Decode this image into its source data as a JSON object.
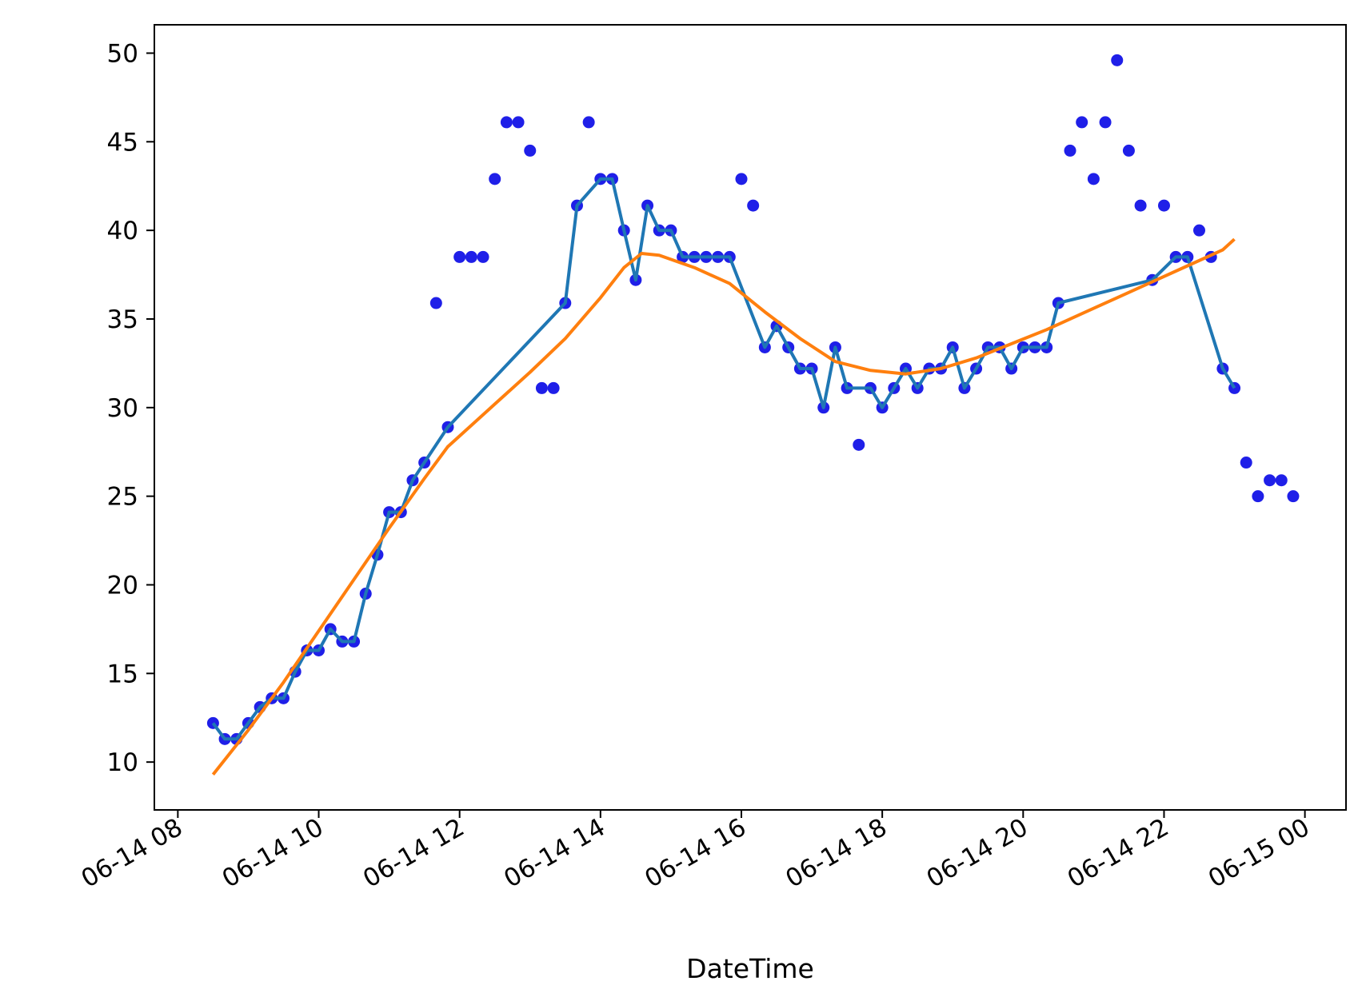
{
  "chart_data": {
    "type": "line",
    "xlabel": "DateTime",
    "ylabel": "",
    "title": "",
    "x_axis": {
      "type": "datetime",
      "range": [
        "2024-06-14 07:40",
        "2024-06-15 00:35"
      ],
      "ticks": [
        {
          "t": "2024-06-14 08:00",
          "label": "06-14 08"
        },
        {
          "t": "2024-06-14 10:00",
          "label": "06-14 10"
        },
        {
          "t": "2024-06-14 12:00",
          "label": "06-14 12"
        },
        {
          "t": "2024-06-14 14:00",
          "label": "06-14 14"
        },
        {
          "t": "2024-06-14 16:00",
          "label": "06-14 16"
        },
        {
          "t": "2024-06-14 18:00",
          "label": "06-14 18"
        },
        {
          "t": "2024-06-14 20:00",
          "label": "06-14 20"
        },
        {
          "t": "2024-06-14 22:00",
          "label": "06-14 22"
        },
        {
          "t": "2024-06-15 00:00",
          "label": "06-15 00"
        }
      ]
    },
    "y_axis": {
      "range": [
        7.3,
        51.6
      ],
      "ticks": [
        10,
        15,
        20,
        25,
        30,
        35,
        40,
        45,
        50
      ]
    },
    "grid": false,
    "colors": {
      "scatter": "#1f1fe8",
      "line": "#1f77b4",
      "trend": "#ff7f0e"
    },
    "scatter": [
      [
        "2024-06-14 08:30",
        12.2
      ],
      [
        "2024-06-14 08:40",
        11.3
      ],
      [
        "2024-06-14 08:50",
        11.3
      ],
      [
        "2024-06-14 09:00",
        12.2
      ],
      [
        "2024-06-14 09:10",
        13.1
      ],
      [
        "2024-06-14 09:20",
        13.6
      ],
      [
        "2024-06-14 09:30",
        13.6
      ],
      [
        "2024-06-14 09:40",
        15.1
      ],
      [
        "2024-06-14 09:50",
        16.3
      ],
      [
        "2024-06-14 10:00",
        16.3
      ],
      [
        "2024-06-14 10:10",
        17.5
      ],
      [
        "2024-06-14 10:20",
        16.8
      ],
      [
        "2024-06-14 10:30",
        16.8
      ],
      [
        "2024-06-14 10:40",
        19.5
      ],
      [
        "2024-06-14 10:50",
        21.7
      ],
      [
        "2024-06-14 11:00",
        24.1
      ],
      [
        "2024-06-14 11:10",
        24.1
      ],
      [
        "2024-06-14 11:20",
        25.9
      ],
      [
        "2024-06-14 11:30",
        26.9
      ],
      [
        "2024-06-14 11:40",
        35.9
      ],
      [
        "2024-06-14 11:50",
        28.9
      ],
      [
        "2024-06-14 12:00",
        38.5
      ],
      [
        "2024-06-14 12:10",
        38.5
      ],
      [
        "2024-06-14 12:20",
        38.5
      ],
      [
        "2024-06-14 12:30",
        42.9
      ],
      [
        "2024-06-14 12:40",
        46.1
      ],
      [
        "2024-06-14 12:50",
        46.1
      ],
      [
        "2024-06-14 13:00",
        44.5
      ],
      [
        "2024-06-14 13:10",
        31.1
      ],
      [
        "2024-06-14 13:20",
        31.1
      ],
      [
        "2024-06-14 13:30",
        35.9
      ],
      [
        "2024-06-14 13:40",
        41.4
      ],
      [
        "2024-06-14 13:50",
        46.1
      ],
      [
        "2024-06-14 14:00",
        42.9
      ],
      [
        "2024-06-14 14:10",
        42.9
      ],
      [
        "2024-06-14 14:20",
        40.0
      ],
      [
        "2024-06-14 14:30",
        37.2
      ],
      [
        "2024-06-14 14:40",
        41.4
      ],
      [
        "2024-06-14 14:50",
        40.0
      ],
      [
        "2024-06-14 15:00",
        40.0
      ],
      [
        "2024-06-14 15:10",
        38.5
      ],
      [
        "2024-06-14 15:20",
        38.5
      ],
      [
        "2024-06-14 15:30",
        38.5
      ],
      [
        "2024-06-14 15:40",
        38.5
      ],
      [
        "2024-06-14 15:50",
        38.5
      ],
      [
        "2024-06-14 16:00",
        42.9
      ],
      [
        "2024-06-14 16:10",
        41.4
      ],
      [
        "2024-06-14 16:20",
        33.4
      ],
      [
        "2024-06-14 16:30",
        34.6
      ],
      [
        "2024-06-14 16:40",
        33.4
      ],
      [
        "2024-06-14 16:50",
        32.2
      ],
      [
        "2024-06-14 17:00",
        32.2
      ],
      [
        "2024-06-14 17:10",
        30.0
      ],
      [
        "2024-06-14 17:20",
        33.4
      ],
      [
        "2024-06-14 17:30",
        31.1
      ],
      [
        "2024-06-14 17:40",
        27.9
      ],
      [
        "2024-06-14 17:50",
        31.1
      ],
      [
        "2024-06-14 18:00",
        30.0
      ],
      [
        "2024-06-14 18:10",
        31.1
      ],
      [
        "2024-06-14 18:20",
        32.2
      ],
      [
        "2024-06-14 18:30",
        31.1
      ],
      [
        "2024-06-14 18:40",
        32.2
      ],
      [
        "2024-06-14 18:50",
        32.2
      ],
      [
        "2024-06-14 19:00",
        33.4
      ],
      [
        "2024-06-14 19:10",
        31.1
      ],
      [
        "2024-06-14 19:20",
        32.2
      ],
      [
        "2024-06-14 19:30",
        33.4
      ],
      [
        "2024-06-14 19:40",
        33.4
      ],
      [
        "2024-06-14 19:50",
        32.2
      ],
      [
        "2024-06-14 20:00",
        33.4
      ],
      [
        "2024-06-14 20:10",
        33.4
      ],
      [
        "2024-06-14 20:20",
        33.4
      ],
      [
        "2024-06-14 20:30",
        35.9
      ],
      [
        "2024-06-14 20:40",
        44.5
      ],
      [
        "2024-06-14 20:50",
        46.1
      ],
      [
        "2024-06-14 21:00",
        42.9
      ],
      [
        "2024-06-14 21:10",
        46.1
      ],
      [
        "2024-06-14 21:20",
        49.6
      ],
      [
        "2024-06-14 21:30",
        44.5
      ],
      [
        "2024-06-14 21:40",
        41.4
      ],
      [
        "2024-06-14 21:50",
        37.2
      ],
      [
        "2024-06-14 22:00",
        41.4
      ],
      [
        "2024-06-14 22:10",
        38.5
      ],
      [
        "2024-06-14 22:20",
        38.5
      ],
      [
        "2024-06-14 22:30",
        40.0
      ],
      [
        "2024-06-14 22:40",
        38.5
      ],
      [
        "2024-06-14 22:50",
        32.2
      ],
      [
        "2024-06-14 23:00",
        31.1
      ],
      [
        "2024-06-14 23:10",
        26.9
      ],
      [
        "2024-06-14 23:20",
        25.0
      ],
      [
        "2024-06-14 23:30",
        25.9
      ],
      [
        "2024-06-14 23:40",
        25.9
      ],
      [
        "2024-06-14 23:50",
        25.0
      ]
    ],
    "line": [
      [
        "2024-06-14 08:30",
        12.2
      ],
      [
        "2024-06-14 08:40",
        11.3
      ],
      [
        "2024-06-14 08:50",
        11.3
      ],
      [
        "2024-06-14 09:00",
        12.2
      ],
      [
        "2024-06-14 09:10",
        13.1
      ],
      [
        "2024-06-14 09:20",
        13.6
      ],
      [
        "2024-06-14 09:30",
        13.6
      ],
      [
        "2024-06-14 09:40",
        15.1
      ],
      [
        "2024-06-14 09:50",
        16.3
      ],
      [
        "2024-06-14 10:00",
        16.3
      ],
      [
        "2024-06-14 10:10",
        17.5
      ],
      [
        "2024-06-14 10:20",
        16.8
      ],
      [
        "2024-06-14 10:30",
        16.8
      ],
      [
        "2024-06-14 10:40",
        19.5
      ],
      [
        "2024-06-14 10:50",
        21.7
      ],
      [
        "2024-06-14 11:00",
        24.1
      ],
      [
        "2024-06-14 11:10",
        24.1
      ],
      [
        "2024-06-14 11:20",
        25.9
      ],
      [
        "2024-06-14 11:30",
        26.9
      ],
      [
        "2024-06-14 11:50",
        28.9
      ],
      [
        "2024-06-14 13:30",
        35.9
      ],
      [
        "2024-06-14 13:40",
        41.4
      ],
      [
        "2024-06-14 14:00",
        42.9
      ],
      [
        "2024-06-14 14:10",
        42.9
      ],
      [
        "2024-06-14 14:20",
        40.0
      ],
      [
        "2024-06-14 14:30",
        37.2
      ],
      [
        "2024-06-14 14:40",
        41.4
      ],
      [
        "2024-06-14 14:50",
        40.0
      ],
      [
        "2024-06-14 15:00",
        40.0
      ],
      [
        "2024-06-14 15:10",
        38.5
      ],
      [
        "2024-06-14 15:20",
        38.5
      ],
      [
        "2024-06-14 15:30",
        38.5
      ],
      [
        "2024-06-14 15:40",
        38.5
      ],
      [
        "2024-06-14 15:50",
        38.5
      ],
      [
        "2024-06-14 16:20",
        33.4
      ],
      [
        "2024-06-14 16:30",
        34.6
      ],
      [
        "2024-06-14 16:40",
        33.4
      ],
      [
        "2024-06-14 16:50",
        32.2
      ],
      [
        "2024-06-14 17:00",
        32.2
      ],
      [
        "2024-06-14 17:10",
        30.0
      ],
      [
        "2024-06-14 17:20",
        33.4
      ],
      [
        "2024-06-14 17:30",
        31.1
      ],
      [
        "2024-06-14 17:50",
        31.1
      ],
      [
        "2024-06-14 18:00",
        30.0
      ],
      [
        "2024-06-14 18:10",
        31.1
      ],
      [
        "2024-06-14 18:20",
        32.2
      ],
      [
        "2024-06-14 18:30",
        31.1
      ],
      [
        "2024-06-14 18:40",
        32.2
      ],
      [
        "2024-06-14 18:50",
        32.2
      ],
      [
        "2024-06-14 19:00",
        33.4
      ],
      [
        "2024-06-14 19:10",
        31.1
      ],
      [
        "2024-06-14 19:20",
        32.2
      ],
      [
        "2024-06-14 19:30",
        33.4
      ],
      [
        "2024-06-14 19:40",
        33.4
      ],
      [
        "2024-06-14 19:50",
        32.2
      ],
      [
        "2024-06-14 20:00",
        33.4
      ],
      [
        "2024-06-14 20:10",
        33.4
      ],
      [
        "2024-06-14 20:20",
        33.4
      ],
      [
        "2024-06-14 20:30",
        35.9
      ],
      [
        "2024-06-14 21:50",
        37.2
      ],
      [
        "2024-06-14 22:10",
        38.5
      ],
      [
        "2024-06-14 22:20",
        38.5
      ],
      [
        "2024-06-14 22:50",
        32.2
      ],
      [
        "2024-06-14 23:00",
        31.1
      ]
    ],
    "trend": [
      [
        "2024-06-14 08:30",
        9.3
      ],
      [
        "2024-06-14 09:00",
        11.8
      ],
      [
        "2024-06-14 09:30",
        14.5
      ],
      [
        "2024-06-14 10:00",
        17.4
      ],
      [
        "2024-06-14 10:30",
        20.3
      ],
      [
        "2024-06-14 11:00",
        23.2
      ],
      [
        "2024-06-14 11:30",
        26.0
      ],
      [
        "2024-06-14 11:50",
        27.8
      ],
      [
        "2024-06-14 12:30",
        30.2
      ],
      [
        "2024-06-14 13:00",
        32.0
      ],
      [
        "2024-06-14 13:30",
        33.9
      ],
      [
        "2024-06-14 14:00",
        36.2
      ],
      [
        "2024-06-14 14:20",
        37.9
      ],
      [
        "2024-06-14 14:35",
        38.7
      ],
      [
        "2024-06-14 14:50",
        38.6
      ],
      [
        "2024-06-14 15:20",
        37.9
      ],
      [
        "2024-06-14 15:50",
        37.0
      ],
      [
        "2024-06-14 16:20",
        35.4
      ],
      [
        "2024-06-14 16:50",
        33.9
      ],
      [
        "2024-06-14 17:20",
        32.6
      ],
      [
        "2024-06-14 17:50",
        32.1
      ],
      [
        "2024-06-14 18:20",
        31.9
      ],
      [
        "2024-06-14 18:50",
        32.2
      ],
      [
        "2024-06-14 19:20",
        32.8
      ],
      [
        "2024-06-14 19:50",
        33.6
      ],
      [
        "2024-06-14 20:20",
        34.4
      ],
      [
        "2024-06-14 20:50",
        35.3
      ],
      [
        "2024-06-14 21:20",
        36.2
      ],
      [
        "2024-06-14 21:50",
        37.1
      ],
      [
        "2024-06-14 22:20",
        38.0
      ],
      [
        "2024-06-14 22:50",
        38.9
      ],
      [
        "2024-06-14 23:00",
        39.5
      ]
    ]
  }
}
